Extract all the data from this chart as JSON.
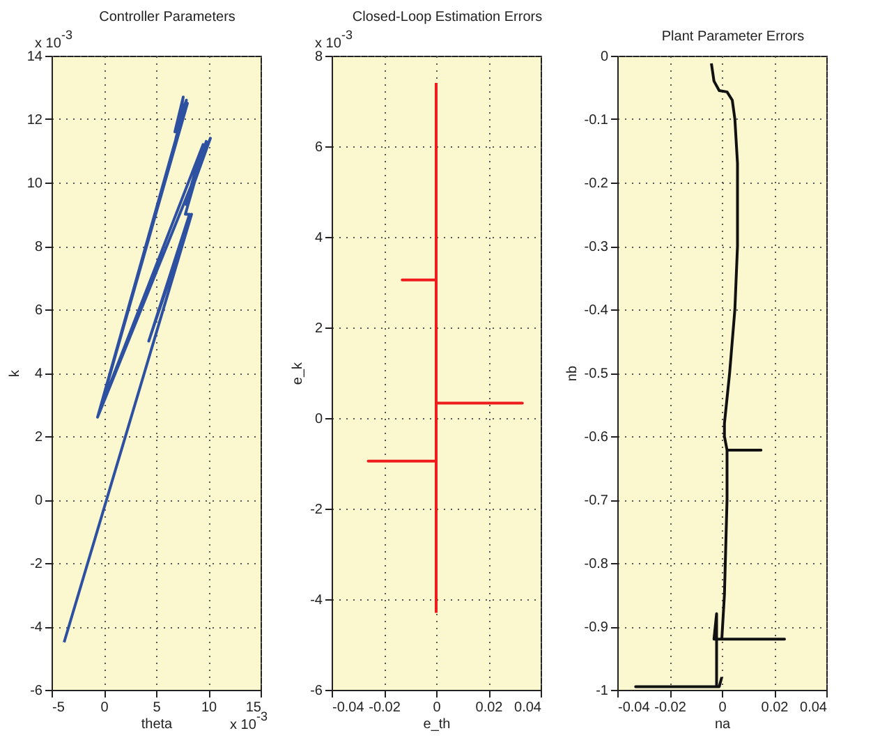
{
  "chart_data": [
    {
      "type": "line",
      "title": "Controller Parameters",
      "xlabel": "theta",
      "ylabel": "k",
      "annotations": [
        "x 10$^{-3}$",
        "x 10$^{-3}$"
      ],
      "xlim": [
        -5,
        15
      ],
      "ylim": [
        -6,
        14
      ],
      "xticks": [
        -5,
        0,
        5,
        10,
        15
      ],
      "yticks": [
        -6,
        -4,
        -2,
        0,
        2,
        4,
        6,
        8,
        10,
        12,
        14
      ],
      "grid": true,
      "series": [
        {
          "color": "#2e50a0",
          "x": [
            -3.8,
            8.4,
            4.3,
            8.2,
            7.8,
            9.8,
            7.9,
            10.2,
            -0.6,
            7.0,
            7.6,
            6.8,
            7.9,
            6.9,
            8.0,
            -0.4,
            9.5,
            8.0,
            9.6
          ],
          "values": [
            -4.5,
            9.0,
            5.0,
            9.0,
            9.0,
            11.3,
            9.3,
            11.4,
            2.6,
            11.5,
            12.7,
            11.6,
            12.6,
            11.4,
            12.5,
            2.8,
            11.2,
            9.5,
            11.0
          ]
        }
      ]
    },
    {
      "type": "line",
      "title": "Closed-Loop Estimation Errors",
      "xlabel": "e_th",
      "ylabel": "e_k",
      "annotations": [
        "x 10$^{-3}$"
      ],
      "xlim": [
        -0.04,
        0.04
      ],
      "ylim": [
        -6,
        8
      ],
      "xticks": [
        -0.04,
        -0.02,
        0,
        0.02,
        0.04
      ],
      "yticks": [
        -6,
        -4,
        -2,
        0,
        2,
        4,
        6,
        8
      ],
      "grid": true,
      "series": [
        {
          "color": "#ee1c1c",
          "x": [
            0,
            0,
            -0.013,
            0,
            0,
            0.033,
            0,
            0,
            -0.026,
            0,
            0
          ],
          "values": [
            7.4,
            3.05,
            3.05,
            3.05,
            0.33,
            0.33,
            0.33,
            -0.95,
            -0.95,
            -0.95,
            -4.3
          ]
        }
      ]
    },
    {
      "type": "line",
      "title": "Plant Parameter Errors",
      "xlabel": "na",
      "ylabel": "nb",
      "xlim": [
        -0.04,
        0.04
      ],
      "ylim": [
        -1,
        0
      ],
      "xticks": [
        -0.04,
        -0.02,
        0,
        0.02,
        0.04
      ],
      "yticks": [
        -1,
        -0.9,
        -0.8,
        -0.7,
        -0.6,
        -0.5,
        -0.4,
        -0.3,
        -0.2,
        -0.1,
        0
      ],
      "grid": true,
      "series": [
        {
          "color": "#111111",
          "x": [
            -0.004,
            -0.003,
            -0.001,
            0.002,
            0.004,
            0.005,
            0.006,
            0.006,
            0.005,
            0.003,
            0.001,
            0.001,
            0.002,
            0.015,
            0.002,
            0.002,
            0.001,
            0,
            0.024,
            -0.003,
            -0.002,
            -0.002,
            -0.033,
            -0.001,
            0
          ],
          "values": [
            -0.012,
            -0.04,
            -0.055,
            -0.057,
            -0.07,
            -0.1,
            -0.17,
            -0.3,
            -0.4,
            -0.5,
            -0.58,
            -0.6,
            -0.622,
            -0.622,
            -0.622,
            -0.7,
            -0.85,
            -0.92,
            -0.92,
            -0.92,
            -0.88,
            -0.995,
            -0.995,
            -0.995,
            -0.98
          ]
        }
      ]
    }
  ]
}
